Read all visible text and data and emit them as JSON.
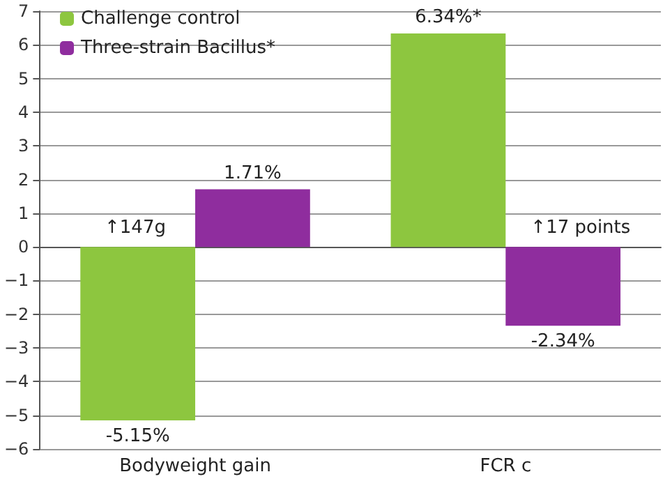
{
  "chart_data": {
    "type": "bar",
    "categories": [
      "Bodyweight gain",
      "FCR c"
    ],
    "series": [
      {
        "name": "Challenge control",
        "color": "#8dc63f",
        "values": [
          -5.15,
          6.34
        ],
        "value_labels": [
          "-5.15%",
          "6.34%*"
        ]
      },
      {
        "name": "Three-strain Bacillus*",
        "color": "#8f2d9e",
        "values": [
          1.71,
          -2.34
        ],
        "value_labels": [
          "1.71%",
          "-2.34%"
        ]
      }
    ],
    "ylim": [
      -6,
      7
    ],
    "yticks": [
      -6,
      -5,
      -4,
      -3,
      -2,
      -1,
      0,
      1,
      2,
      3,
      4,
      5,
      6,
      7
    ],
    "grid": "y",
    "legend": "top left",
    "annotations": [
      "↑147g",
      "↑17 points"
    ]
  }
}
